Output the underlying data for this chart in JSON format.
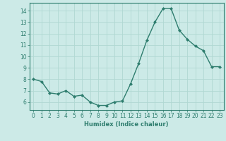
{
  "x": [
    0,
    1,
    2,
    3,
    4,
    5,
    6,
    7,
    8,
    9,
    10,
    11,
    12,
    13,
    14,
    15,
    16,
    17,
    18,
    19,
    20,
    21,
    22,
    23
  ],
  "y": [
    8.0,
    7.8,
    6.8,
    6.7,
    7.0,
    6.5,
    6.6,
    6.0,
    5.7,
    5.7,
    6.0,
    6.1,
    7.6,
    9.4,
    11.4,
    13.0,
    14.2,
    14.2,
    12.3,
    11.5,
    10.9,
    10.5,
    9.1,
    9.1
  ],
  "line_color": "#2e7d6e",
  "marker": "D",
  "marker_size": 2.0,
  "bg_color": "#cceae7",
  "grid_color": "#b0d8d2",
  "axis_color": "#2e7d6e",
  "xlabel": "Humidex (Indice chaleur)",
  "xlim": [
    -0.5,
    23.5
  ],
  "ylim": [
    5.3,
    14.7
  ],
  "yticks": [
    6,
    7,
    8,
    9,
    10,
    11,
    12,
    13,
    14
  ],
  "xticks": [
    0,
    1,
    2,
    3,
    4,
    5,
    6,
    7,
    8,
    9,
    10,
    11,
    12,
    13,
    14,
    15,
    16,
    17,
    18,
    19,
    20,
    21,
    22,
    23
  ],
  "tick_fontsize": 5.5,
  "xlabel_fontsize": 6.0,
  "linewidth": 1.0
}
